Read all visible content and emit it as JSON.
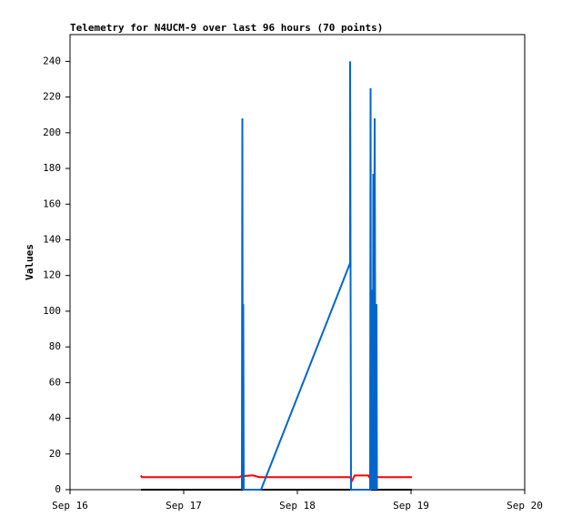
{
  "chart_data": {
    "type": "line",
    "title": "Telemetry for N4UCM-9 over last 96 hours (70 points)",
    "y_label": "Values",
    "xlim": [
      0,
      4
    ],
    "xticks": [
      {
        "value": 0,
        "label": "Sep 16"
      },
      {
        "value": 1,
        "label": "Sep 17"
      },
      {
        "value": 2,
        "label": "Sep 18"
      },
      {
        "value": 3,
        "label": "Sep 19"
      },
      {
        "value": 4,
        "label": "Sep 20"
      }
    ],
    "ylim": [
      0,
      255
    ],
    "yticks": [
      0,
      20,
      40,
      60,
      80,
      100,
      120,
      140,
      160,
      180,
      200,
      220,
      240
    ],
    "series": [
      {
        "color": "#000000",
        "x": [
          0.624,
          3.008
        ],
        "values": [
          0,
          0
        ]
      },
      {
        "color": "#ff0000",
        "x": [
          0.624,
          0.632,
          1.488,
          1.504,
          1.608,
          1.664,
          2.464,
          2.48,
          2.504,
          2.624,
          2.632,
          3.008
        ],
        "values": [
          8,
          7,
          7,
          7.5,
          8,
          7,
          7,
          5,
          8,
          8,
          7,
          7
        ]
      },
      {
        "color": "#0066cc",
        "x": [
          1.512,
          1.516,
          1.52,
          1.524,
          1.528,
          1.68,
          2.464,
          2.464,
          2.472,
          2.64,
          2.644,
          2.648,
          2.656,
          2.664,
          2.668,
          2.672,
          2.68,
          2.688,
          2.696,
          2.7
        ],
        "values": [
          0,
          208,
          0,
          104,
          0,
          0,
          127,
          240,
          0,
          0,
          225,
          0,
          112,
          0,
          177,
          0,
          208,
          0,
          104,
          0
        ]
      }
    ]
  }
}
